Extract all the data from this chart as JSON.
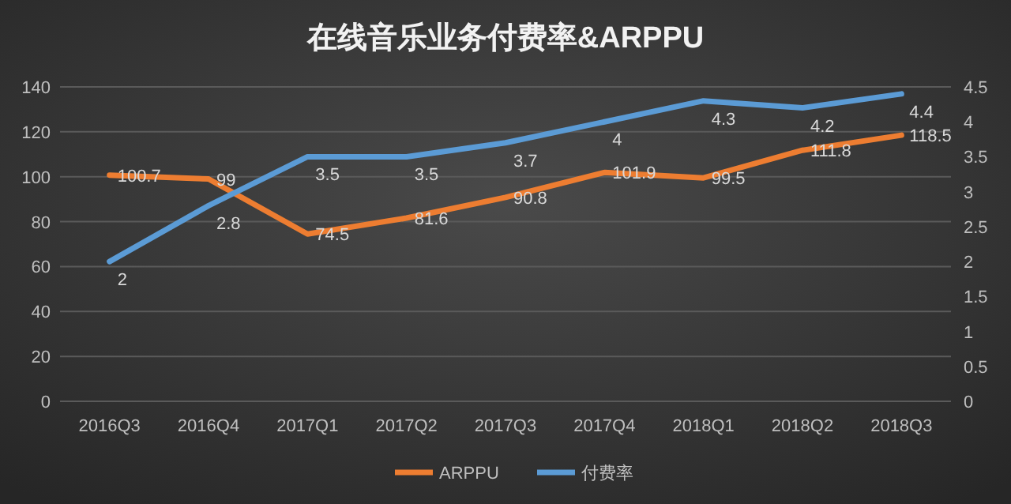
{
  "chart_data": {
    "type": "line",
    "title": "在线音乐业务付费率&ARPPU",
    "categories": [
      "2016Q3",
      "2016Q4",
      "2017Q1",
      "2017Q2",
      "2017Q3",
      "2017Q4",
      "2018Q1",
      "2018Q2",
      "2018Q3"
    ],
    "series": [
      {
        "name": "ARPPU",
        "color": "#ed7d31",
        "values": [
          100.7,
          99,
          74.5,
          81.6,
          90.8,
          101.9,
          99.5,
          111.8,
          118.5
        ]
      },
      {
        "name": "付费率",
        "color": "#5b9bd5",
        "axis": "y2",
        "values": [
          2,
          2.8,
          3.5,
          3.5,
          3.7,
          4,
          4.3,
          4.2,
          4.4
        ]
      }
    ],
    "ylim": [
      0,
      140
    ],
    "yticks": [
      0,
      20,
      40,
      60,
      80,
      100,
      120,
      140
    ],
    "y2lim": [
      0,
      4.5
    ],
    "y2ticks": [
      0,
      0.5,
      1,
      1.5,
      2,
      2.5,
      3,
      3.5,
      4,
      4.5
    ],
    "grid": "y",
    "legend": "bottom",
    "data_labels": true
  }
}
